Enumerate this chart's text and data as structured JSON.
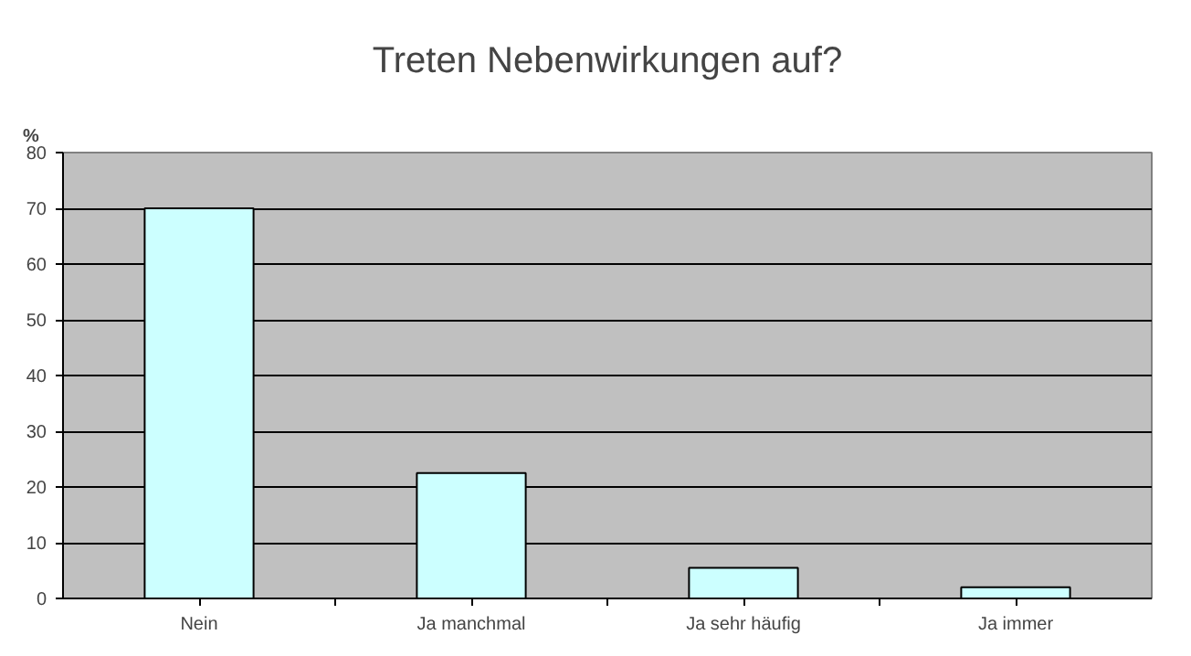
{
  "chart_data": {
    "type": "bar",
    "title": "Treten Nebenwirkungen auf?",
    "ylabel": "%",
    "categories": [
      "Nein",
      "Ja manchmal",
      "Ja sehr häufig",
      "Ja immer"
    ],
    "values": [
      70,
      22.5,
      5.5,
      2
    ],
    "color": "#ccffff",
    "ylim": [
      0,
      80
    ],
    "yticks": [
      0,
      10,
      20,
      30,
      40,
      50,
      60,
      70,
      80
    ],
    "grid": "y"
  }
}
